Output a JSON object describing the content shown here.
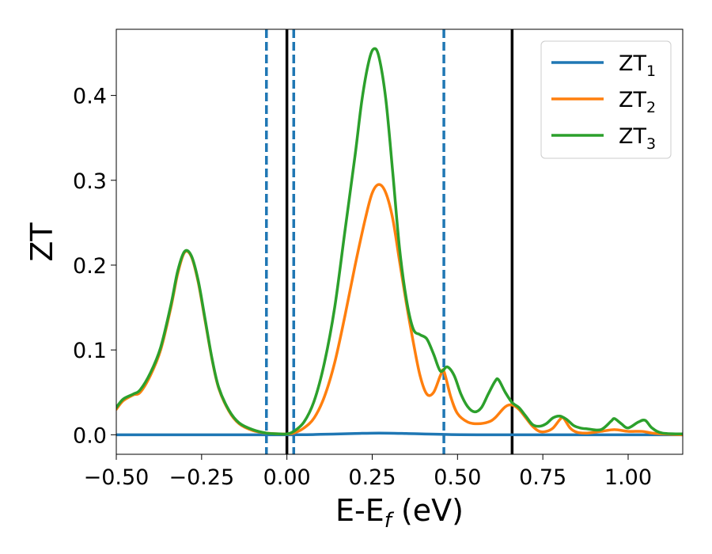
{
  "chart_data": {
    "type": "line",
    "xlabel": "E-E",
    "xlabel_sub": "f",
    "xlabel_unit": " (eV)",
    "ylabel": "ZT",
    "xlim": [
      -0.5,
      1.16
    ],
    "ylim": [
      -0.023,
      0.478
    ],
    "xticks": [
      -0.5,
      -0.25,
      0.0,
      0.25,
      0.5,
      0.75,
      1.0
    ],
    "xtick_labels": [
      "−0.50",
      "−0.25",
      "0.00",
      "0.25",
      "0.50",
      "0.75",
      "1.00"
    ],
    "yticks": [
      0.0,
      0.1,
      0.2,
      0.3,
      0.4
    ],
    "ytick_labels": [
      "0.0",
      "0.1",
      "0.2",
      "0.3",
      "0.4"
    ],
    "legend_position": "top-right",
    "vlines_solid": [
      0.0,
      0.66
    ],
    "vlines_dashed": [
      -0.06,
      0.02,
      0.46
    ],
    "vline_solid_color": "#000000",
    "vline_dashed_color": "#1f77b4",
    "series": [
      {
        "name": "ZT",
        "sub": "1",
        "color": "#1f77b4",
        "points": [
          [
            -0.5,
            0.0
          ],
          [
            0.0,
            0.0
          ],
          [
            0.1,
            0.0005
          ],
          [
            0.2,
            0.0015
          ],
          [
            0.27,
            0.002
          ],
          [
            0.35,
            0.0015
          ],
          [
            0.45,
            0.0005
          ],
          [
            0.6,
            0.0
          ],
          [
            1.16,
            0.0
          ]
        ]
      },
      {
        "name": "ZT",
        "sub": "2",
        "color": "#ff7f0e",
        "points": [
          [
            -0.5,
            0.03
          ],
          [
            -0.48,
            0.04
          ],
          [
            -0.45,
            0.047
          ],
          [
            -0.43,
            0.05
          ],
          [
            -0.4,
            0.07
          ],
          [
            -0.37,
            0.1
          ],
          [
            -0.34,
            0.15
          ],
          [
            -0.32,
            0.19
          ],
          [
            -0.3,
            0.215
          ],
          [
            -0.28,
            0.21
          ],
          [
            -0.26,
            0.18
          ],
          [
            -0.24,
            0.135
          ],
          [
            -0.22,
            0.09
          ],
          [
            -0.2,
            0.055
          ],
          [
            -0.17,
            0.028
          ],
          [
            -0.14,
            0.013
          ],
          [
            -0.1,
            0.005
          ],
          [
            -0.06,
            0.002
          ],
          [
            -0.02,
            0.001
          ],
          [
            0.0,
            0.001
          ],
          [
            0.02,
            0.002
          ],
          [
            0.05,
            0.008
          ],
          [
            0.08,
            0.02
          ],
          [
            0.11,
            0.045
          ],
          [
            0.14,
            0.085
          ],
          [
            0.17,
            0.14
          ],
          [
            0.2,
            0.2
          ],
          [
            0.23,
            0.255
          ],
          [
            0.25,
            0.285
          ],
          [
            0.27,
            0.295
          ],
          [
            0.29,
            0.285
          ],
          [
            0.31,
            0.255
          ],
          [
            0.33,
            0.205
          ],
          [
            0.35,
            0.155
          ],
          [
            0.37,
            0.11
          ],
          [
            0.39,
            0.07
          ],
          [
            0.41,
            0.048
          ],
          [
            0.43,
            0.05
          ],
          [
            0.45,
            0.07
          ],
          [
            0.46,
            0.075
          ],
          [
            0.48,
            0.045
          ],
          [
            0.5,
            0.025
          ],
          [
            0.53,
            0.015
          ],
          [
            0.56,
            0.013
          ],
          [
            0.59,
            0.015
          ],
          [
            0.61,
            0.02
          ],
          [
            0.64,
            0.033
          ],
          [
            0.66,
            0.035
          ],
          [
            0.68,
            0.03
          ],
          [
            0.7,
            0.02
          ],
          [
            0.72,
            0.01
          ],
          [
            0.74,
            0.004
          ],
          [
            0.76,
            0.004
          ],
          [
            0.78,
            0.008
          ],
          [
            0.8,
            0.018
          ],
          [
            0.81,
            0.02
          ],
          [
            0.83,
            0.008
          ],
          [
            0.85,
            0.003
          ],
          [
            0.88,
            0.002
          ],
          [
            0.92,
            0.004
          ],
          [
            0.96,
            0.006
          ],
          [
            1.0,
            0.004
          ],
          [
            1.04,
            0.004
          ],
          [
            1.07,
            0.002
          ],
          [
            1.1,
            0.001
          ],
          [
            1.16,
            0.0
          ]
        ]
      },
      {
        "name": "ZT",
        "sub": "3",
        "color": "#2ca02c",
        "points": [
          [
            -0.5,
            0.032
          ],
          [
            -0.48,
            0.042
          ],
          [
            -0.45,
            0.048
          ],
          [
            -0.43,
            0.053
          ],
          [
            -0.4,
            0.073
          ],
          [
            -0.37,
            0.103
          ],
          [
            -0.34,
            0.153
          ],
          [
            -0.32,
            0.193
          ],
          [
            -0.3,
            0.216
          ],
          [
            -0.28,
            0.211
          ],
          [
            -0.26,
            0.182
          ],
          [
            -0.24,
            0.137
          ],
          [
            -0.22,
            0.091
          ],
          [
            -0.2,
            0.056
          ],
          [
            -0.17,
            0.029
          ],
          [
            -0.14,
            0.014
          ],
          [
            -0.1,
            0.006
          ],
          [
            -0.06,
            0.002
          ],
          [
            -0.02,
            0.001
          ],
          [
            0.0,
            0.001
          ],
          [
            0.02,
            0.004
          ],
          [
            0.05,
            0.015
          ],
          [
            0.08,
            0.04
          ],
          [
            0.11,
            0.085
          ],
          [
            0.14,
            0.15
          ],
          [
            0.17,
            0.24
          ],
          [
            0.2,
            0.33
          ],
          [
            0.22,
            0.395
          ],
          [
            0.24,
            0.44
          ],
          [
            0.255,
            0.455
          ],
          [
            0.27,
            0.445
          ],
          [
            0.29,
            0.395
          ],
          [
            0.31,
            0.31
          ],
          [
            0.33,
            0.22
          ],
          [
            0.35,
            0.16
          ],
          [
            0.37,
            0.125
          ],
          [
            0.39,
            0.118
          ],
          [
            0.41,
            0.113
          ],
          [
            0.43,
            0.095
          ],
          [
            0.45,
            0.075
          ],
          [
            0.47,
            0.08
          ],
          [
            0.49,
            0.07
          ],
          [
            0.51,
            0.048
          ],
          [
            0.53,
            0.033
          ],
          [
            0.55,
            0.027
          ],
          [
            0.57,
            0.032
          ],
          [
            0.59,
            0.048
          ],
          [
            0.61,
            0.063
          ],
          [
            0.62,
            0.065
          ],
          [
            0.64,
            0.05
          ],
          [
            0.66,
            0.038
          ],
          [
            0.68,
            0.032
          ],
          [
            0.7,
            0.022
          ],
          [
            0.72,
            0.012
          ],
          [
            0.74,
            0.01
          ],
          [
            0.76,
            0.013
          ],
          [
            0.78,
            0.02
          ],
          [
            0.8,
            0.022
          ],
          [
            0.82,
            0.018
          ],
          [
            0.84,
            0.011
          ],
          [
            0.86,
            0.008
          ],
          [
            0.88,
            0.007
          ],
          [
            0.92,
            0.006
          ],
          [
            0.95,
            0.016
          ],
          [
            0.96,
            0.019
          ],
          [
            0.98,
            0.013
          ],
          [
            1.0,
            0.008
          ],
          [
            1.03,
            0.015
          ],
          [
            1.05,
            0.017
          ],
          [
            1.07,
            0.008
          ],
          [
            1.1,
            0.002
          ],
          [
            1.16,
            0.001
          ]
        ]
      }
    ]
  }
}
